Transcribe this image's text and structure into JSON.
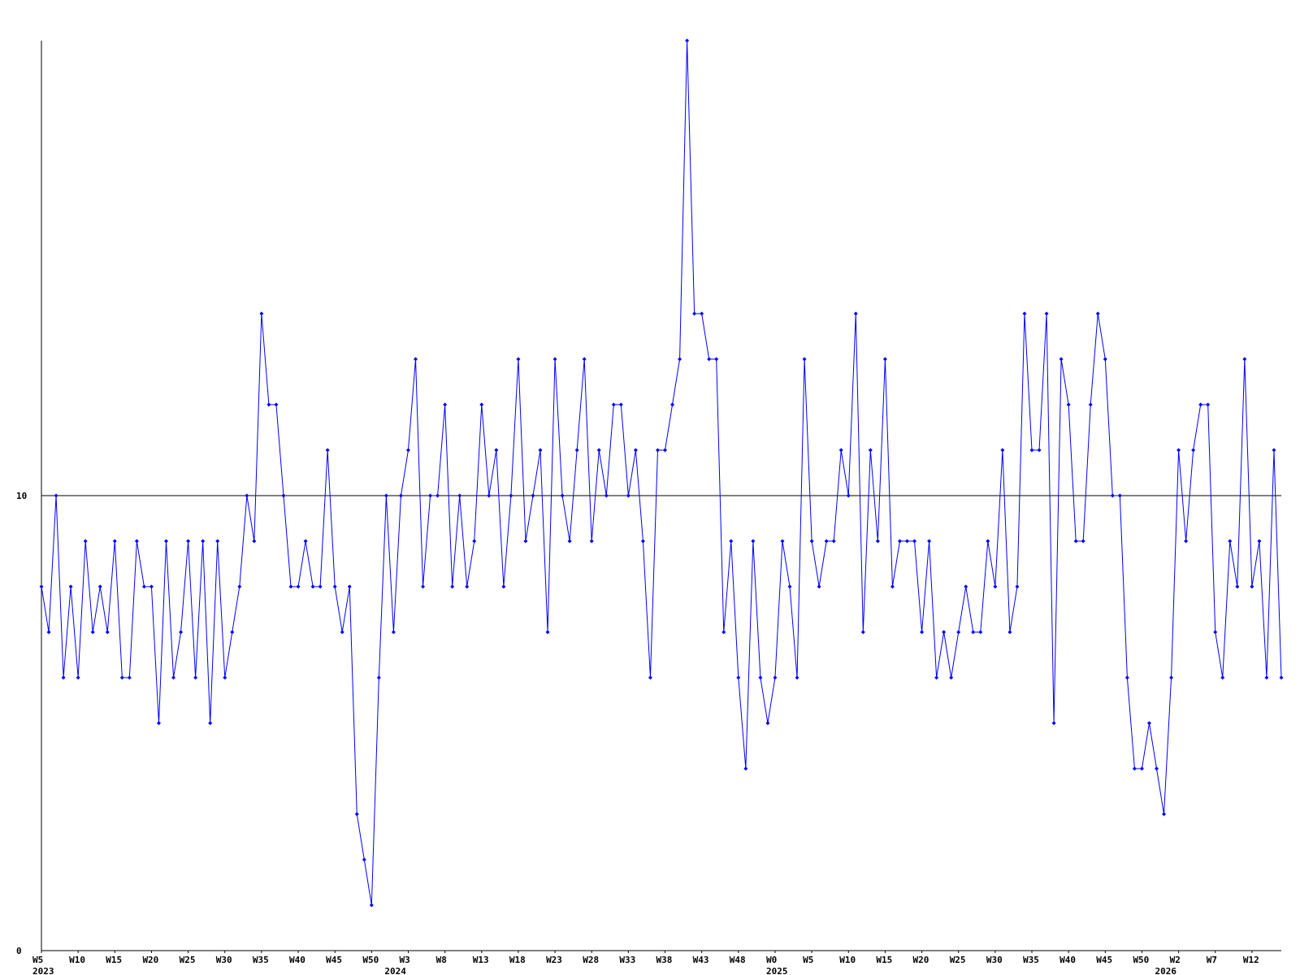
{
  "chart_data": {
    "type": "line",
    "title": "",
    "xlabel": "",
    "ylabel": "",
    "ylim": [
      0,
      20
    ],
    "y_ticks": [
      "0",
      "10"
    ],
    "reference_line": 10,
    "grid": false,
    "colors": {
      "series": "#0000ff",
      "axis": "#000000",
      "background": "#ffffff"
    },
    "x_labels": [
      {
        "label": "W5",
        "index": 0
      },
      {
        "label": "W10",
        "index": 5
      },
      {
        "label": "W15",
        "index": 10
      },
      {
        "label": "W20",
        "index": 15
      },
      {
        "label": "W25",
        "index": 20
      },
      {
        "label": "W30",
        "index": 25
      },
      {
        "label": "W35",
        "index": 30
      },
      {
        "label": "W40",
        "index": 35
      },
      {
        "label": "W45",
        "index": 40
      },
      {
        "label": "W50",
        "index": 45
      },
      {
        "label": "W3",
        "index": 50
      },
      {
        "label": "W8",
        "index": 55
      },
      {
        "label": "W13",
        "index": 60
      },
      {
        "label": "W18",
        "index": 65
      },
      {
        "label": "W23",
        "index": 70
      },
      {
        "label": "W28",
        "index": 75
      },
      {
        "label": "W33",
        "index": 80
      },
      {
        "label": "W38",
        "index": 85
      },
      {
        "label": "W43",
        "index": 90
      },
      {
        "label": "W48",
        "index": 95
      },
      {
        "label": "W0",
        "index": 100
      },
      {
        "label": "W5",
        "index": 105
      },
      {
        "label": "W10",
        "index": 110
      },
      {
        "label": "W15",
        "index": 115
      },
      {
        "label": "W20",
        "index": 120
      },
      {
        "label": "W25",
        "index": 125
      },
      {
        "label": "W30",
        "index": 130
      },
      {
        "label": "W35",
        "index": 135
      },
      {
        "label": "W40",
        "index": 140
      },
      {
        "label": "W45",
        "index": 145
      },
      {
        "label": "W50",
        "index": 150
      },
      {
        "label": "W2",
        "index": 155
      },
      {
        "label": "W7",
        "index": 160
      },
      {
        "label": "W12",
        "index": 165
      }
    ],
    "year_labels": [
      {
        "label": "2023",
        "index": 0
      },
      {
        "label": "2024",
        "index": 48
      },
      {
        "label": "2025",
        "index": 100
      },
      {
        "label": "2026",
        "index": 153
      }
    ],
    "series": [
      {
        "values": [
          8,
          7,
          10,
          6,
          8,
          6,
          9,
          7,
          8,
          7,
          9,
          6,
          6,
          9,
          8,
          8,
          5,
          9,
          6,
          7,
          9,
          6,
          9,
          5,
          9,
          6,
          7,
          8,
          10,
          9,
          14,
          12,
          12,
          10,
          8,
          8,
          9,
          8,
          8,
          11,
          8,
          7,
          8,
          3,
          2,
          1,
          6,
          10,
          7,
          10,
          11,
          13,
          8,
          10,
          10,
          12,
          8,
          10,
          8,
          9,
          12,
          10,
          11,
          8,
          10,
          13,
          9,
          10,
          11,
          7,
          13,
          10,
          9,
          11,
          13,
          9,
          11,
          10,
          12,
          12,
          10,
          11,
          9,
          6,
          11,
          11,
          12,
          13,
          20,
          14,
          14,
          13,
          13,
          7,
          9,
          6,
          4,
          9,
          6,
          5,
          6,
          9,
          8,
          6,
          13,
          9,
          8,
          9,
          9,
          11,
          10,
          14,
          7,
          11,
          9,
          13,
          8,
          9,
          9,
          9,
          7,
          9,
          6,
          7,
          6,
          7,
          8,
          7,
          7,
          9,
          8,
          11,
          7,
          8,
          14,
          11,
          11,
          14,
          5,
          13,
          12,
          9,
          9,
          12,
          14,
          13,
          10,
          10,
          6,
          4,
          4,
          5,
          4,
          3,
          6,
          11,
          9,
          11,
          12,
          12,
          7,
          6,
          9,
          8,
          13,
          8,
          9,
          6,
          11,
          6
        ]
      }
    ]
  }
}
